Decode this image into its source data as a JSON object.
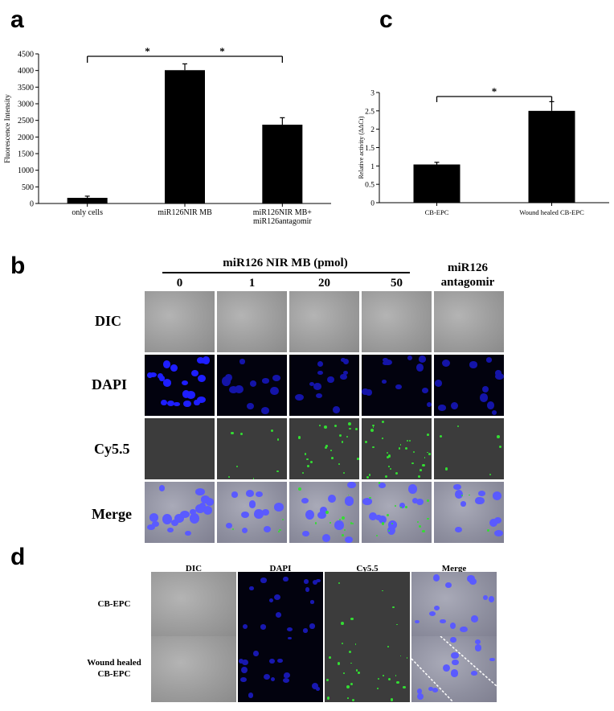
{
  "panels": {
    "a": "a",
    "b": "b",
    "c": "c",
    "d": "d"
  },
  "chart_data": [
    {
      "type": "bar",
      "panel": "a",
      "categories": [
        "only cells",
        "miR126NIR MB",
        "miR126NIR MB+ miR126antagomir"
      ],
      "category_lines": [
        [
          "only cells"
        ],
        [
          "miR126NIR MB"
        ],
        [
          "miR126NIR MB+",
          "miR126antagomir"
        ]
      ],
      "values": [
        170,
        4010,
        2370
      ],
      "errors": [
        50,
        190,
        210
      ],
      "ylabel": "Fluorescence Intensity",
      "xlabel": "",
      "ylim": [
        0,
        4500
      ],
      "yticks": [
        0,
        500,
        1000,
        1500,
        2000,
        2500,
        3000,
        3500,
        4000,
        4500
      ],
      "significance": {
        "from": 0,
        "to": 2,
        "marks": [
          "*",
          "*"
        ]
      },
      "bar_color": "#000000"
    },
    {
      "type": "bar",
      "panel": "c",
      "categories": [
        "CB-EPC",
        "Wound healed CB-EPC"
      ],
      "values": [
        1.04,
        2.5
      ],
      "errors": [
        0.06,
        0.25
      ],
      "ylabel": "Relative activity (ΔΔCt)",
      "xlabel": "",
      "ylim": [
        0,
        3
      ],
      "yticks": [
        0,
        0.5,
        1,
        1.5,
        2,
        2.5,
        3
      ],
      "ytick_labels": [
        "0",
        "0.5",
        "1",
        "1.5",
        "2",
        "2.5",
        "3"
      ],
      "significance": {
        "from": 0,
        "to": 1,
        "marks": [
          "*"
        ]
      },
      "bar_color": "#000000"
    }
  ],
  "panel_b": {
    "group_label": "miR126 NIR MB (pmol)",
    "columns": [
      "0",
      "1",
      "20",
      "50"
    ],
    "antagomir_label_lines": [
      "miR126",
      "antagomir"
    ],
    "rows": [
      "DIC",
      "DAPI",
      "Cy5.5",
      "Merge"
    ]
  },
  "panel_d": {
    "columns": [
      "DIC",
      "DAPI",
      "Cy5.5",
      "Merge"
    ],
    "rows": [
      {
        "lines": [
          "CB-EPC"
        ]
      },
      {
        "lines": [
          "Wound healed",
          "CB-EPC"
        ]
      }
    ]
  },
  "colors": {
    "dapi_nuclei": "#1e1eff",
    "cy55_signal": "#33dd33",
    "merge_nuclei": "#5a5aff"
  }
}
